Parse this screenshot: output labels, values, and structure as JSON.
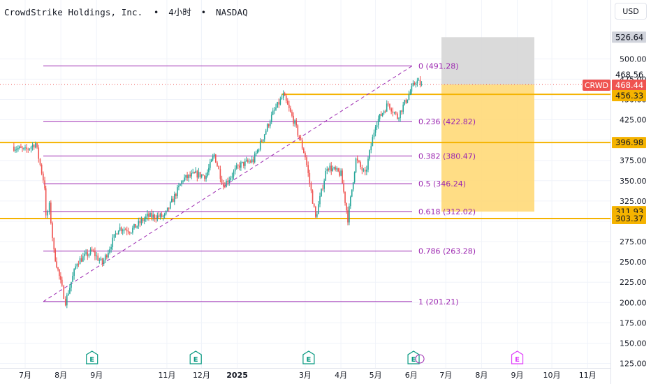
{
  "header": {
    "symbol_name": "CrowdStrike Holdings, Inc.",
    "interval": "4小时",
    "exchange": "NASDAQ",
    "separator": "•",
    "currency_button": "USD"
  },
  "colors": {
    "fib": "#9c27b0",
    "level": "#f5b300",
    "bull": "#26a69a",
    "bear": "#ef5350",
    "target_zone": "#d6d6d6",
    "stop_zone": "#ffd978",
    "grid": "#f0f3fa"
  },
  "chart_data": {
    "type": "candlestick",
    "title": "CrowdStrike Holdings, Inc. • 4小时 • NASDAQ",
    "ylim": [
      125,
      545
    ],
    "y_ticks": [
      "125.00",
      "150.00",
      "175.00",
      "200.00",
      "225.00",
      "250.00",
      "275.00",
      "300.00",
      "325.00",
      "350.00",
      "375.00",
      "400.00",
      "425.00",
      "450.00",
      "475.00",
      "500.00"
    ],
    "x_ticks": [
      "7月",
      "8月",
      "9月",
      "11月",
      "12月",
      "2025",
      "3月",
      "4月",
      "5月",
      "6月",
      "7月",
      "8月",
      "9月",
      "10月",
      "11月"
    ],
    "price_path": [
      {
        "date": "2024-06-20",
        "close": 392
      },
      {
        "date": "2024-07-01",
        "close": 387
      },
      {
        "date": "2024-07-10",
        "close": 396
      },
      {
        "date": "2024-07-18",
        "close": 343
      },
      {
        "date": "2024-07-19",
        "close": 304
      },
      {
        "date": "2024-07-22",
        "close": 319
      },
      {
        "date": "2024-07-26",
        "close": 262
      },
      {
        "date": "2024-08-02",
        "close": 217
      },
      {
        "date": "2024-08-05",
        "close": 201
      },
      {
        "date": "2024-08-15",
        "close": 250
      },
      {
        "date": "2024-08-28",
        "close": 263
      },
      {
        "date": "2024-09-06",
        "close": 248
      },
      {
        "date": "2024-09-20",
        "close": 292
      },
      {
        "date": "2024-10-01",
        "close": 289
      },
      {
        "date": "2024-10-15",
        "close": 306
      },
      {
        "date": "2024-10-30",
        "close": 306
      },
      {
        "date": "2024-11-15",
        "close": 352
      },
      {
        "date": "2024-11-26",
        "close": 358
      },
      {
        "date": "2024-12-05",
        "close": 356
      },
      {
        "date": "2024-12-12",
        "close": 382
      },
      {
        "date": "2024-12-20",
        "close": 344
      },
      {
        "date": "2025-01-03",
        "close": 369
      },
      {
        "date": "2025-01-15",
        "close": 375
      },
      {
        "date": "2025-02-01",
        "close": 433
      },
      {
        "date": "2025-02-10",
        "close": 455
      },
      {
        "date": "2025-02-20",
        "close": 420
      },
      {
        "date": "2025-03-01",
        "close": 380
      },
      {
        "date": "2025-03-10",
        "close": 304
      },
      {
        "date": "2025-03-20",
        "close": 368
      },
      {
        "date": "2025-04-01",
        "close": 358
      },
      {
        "date": "2025-04-07",
        "close": 303
      },
      {
        "date": "2025-04-14",
        "close": 376
      },
      {
        "date": "2025-04-22",
        "close": 357
      },
      {
        "date": "2025-05-01",
        "close": 420
      },
      {
        "date": "2025-05-12",
        "close": 445
      },
      {
        "date": "2025-05-20",
        "close": 428
      },
      {
        "date": "2025-05-30",
        "close": 456
      },
      {
        "date": "2025-06-05",
        "close": 473
      },
      {
        "date": "2025-06-10",
        "close": 468.44
      }
    ],
    "fib_levels": [
      {
        "ratio": "0",
        "value": 491.28,
        "label": "0 (491.28)"
      },
      {
        "ratio": "0.236",
        "value": 422.82,
        "label": "0.236 (422.82)"
      },
      {
        "ratio": "0.382",
        "value": 380.47,
        "label": "0.382 (380.47)"
      },
      {
        "ratio": "0.5",
        "value": 346.24,
        "label": "0.5 (346.24)"
      },
      {
        "ratio": "0.618",
        "value": 312.02,
        "label": "0.618 (312.02)"
      },
      {
        "ratio": "0.786",
        "value": 263.28,
        "label": "0.786 (263.28)"
      },
      {
        "ratio": "1",
        "value": 201.21,
        "label": "1 (201.21)"
      }
    ],
    "horizontal_levels": [
      {
        "value": 456.33,
        "label": "456.33"
      },
      {
        "value": 396.98,
        "label": "396.98"
      },
      {
        "value": 303.37,
        "label": "303.37"
      }
    ],
    "price_tags": [
      {
        "value": 526.64,
        "label": "526.64",
        "style": "target"
      },
      {
        "value": 468.56,
        "label": "468.56",
        "style": "plain"
      },
      {
        "value": 468.44,
        "label": "468.44",
        "style": "current",
        "symbol": "CRWD"
      },
      {
        "value": 456.33,
        "label": "456.33",
        "style": "level"
      },
      {
        "value": 396.98,
        "label": "396.98",
        "style": "level"
      },
      {
        "value": 311.93,
        "label": "311.93",
        "style": "level"
      },
      {
        "value": 303.37,
        "label": "303.37",
        "style": "level"
      }
    ],
    "position": {
      "entry": 468.44,
      "target": 526.64,
      "stop": 311.93,
      "start": "2025-07-01",
      "end": "2025-09-15"
    },
    "earnings_markers": [
      {
        "date": "2024-08-28",
        "label": "E",
        "state": "past"
      },
      {
        "date": "2024-11-26",
        "label": "E",
        "state": "past"
      },
      {
        "date": "2025-03-04",
        "label": "E",
        "state": "past"
      },
      {
        "date": "2025-06-03",
        "label": "E",
        "state": "past"
      },
      {
        "date": "2025-09-01",
        "label": "E",
        "state": "future"
      }
    ],
    "current_price": 468.44,
    "grid": true
  }
}
